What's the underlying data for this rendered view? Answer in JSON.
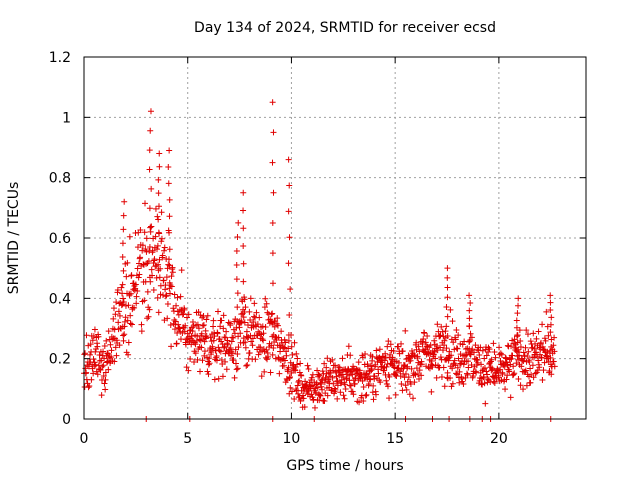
{
  "chart_data": {
    "type": "scatter",
    "title": "Day 134 of 2024, SRMTID for receiver ecsd",
    "xlabel": "GPS time / hours",
    "ylabel": "SRMTID / TECUs",
    "xlim": [
      0,
      24.2
    ],
    "ylim": [
      0,
      1.2
    ],
    "xticks": [
      0,
      5,
      10,
      15,
      20
    ],
    "yticks": [
      0,
      0.2,
      0.4,
      0.6,
      0.8,
      1,
      1.2
    ],
    "xtick_labels": [
      "0",
      "5",
      "10",
      "15",
      "20"
    ],
    "ytick_labels": [
      "0",
      "0.2",
      "0.4",
      "0.6",
      "0.8",
      "1",
      "1.2"
    ],
    "grid": true,
    "marker": "+",
    "color": "#e00000",
    "series": [
      {
        "name": "SRMTID",
        "trend": {
          "x": [
            0,
            0.5,
            1.0,
            1.5,
            2.0,
            2.5,
            3.0,
            3.5,
            4.0,
            4.5,
            5.0,
            5.5,
            6.0,
            6.5,
            7.0,
            7.5,
            8.0,
            8.5,
            9.0,
            9.5,
            10.0,
            10.5,
            11.0,
            11.5,
            12.0,
            12.5,
            13.0,
            13.5,
            14.0,
            14.5,
            15.0,
            15.5,
            16.0,
            16.5,
            17.0,
            17.5,
            18.0,
            18.5,
            19.0,
            19.5,
            20.0,
            20.5,
            21.0,
            21.5,
            22.0,
            22.5,
            22.7
          ],
          "y": [
            0.18,
            0.2,
            0.18,
            0.3,
            0.38,
            0.45,
            0.5,
            0.55,
            0.5,
            0.33,
            0.27,
            0.25,
            0.24,
            0.26,
            0.24,
            0.3,
            0.28,
            0.26,
            0.28,
            0.24,
            0.18,
            0.1,
            0.11,
            0.12,
            0.13,
            0.14,
            0.14,
            0.14,
            0.15,
            0.2,
            0.18,
            0.15,
            0.2,
            0.22,
            0.21,
            0.25,
            0.2,
            0.22,
            0.18,
            0.17,
            0.15,
            0.17,
            0.22,
            0.18,
            0.22,
            0.22,
            0.2
          ]
        },
        "peaks": [
          {
            "x": 1.9,
            "y": 0.72
          },
          {
            "x": 3.2,
            "y": 1.02
          },
          {
            "x": 3.6,
            "y": 0.88
          },
          {
            "x": 4.1,
            "y": 0.89
          },
          {
            "x": 7.4,
            "y": 0.65
          },
          {
            "x": 7.7,
            "y": 0.75
          },
          {
            "x": 9.1,
            "y": 1.05
          },
          {
            "x": 9.9,
            "y": 0.86
          },
          {
            "x": 17.5,
            "y": 0.5
          },
          {
            "x": 18.6,
            "y": 0.41
          },
          {
            "x": 20.9,
            "y": 0.4
          },
          {
            "x": 22.5,
            "y": 0.41
          }
        ],
        "zero_points": [
          3.0,
          5.1,
          9.1,
          11.1,
          15.5,
          16.8,
          17.6,
          18.6,
          19.2,
          19.6,
          22.5
        ]
      }
    ]
  }
}
